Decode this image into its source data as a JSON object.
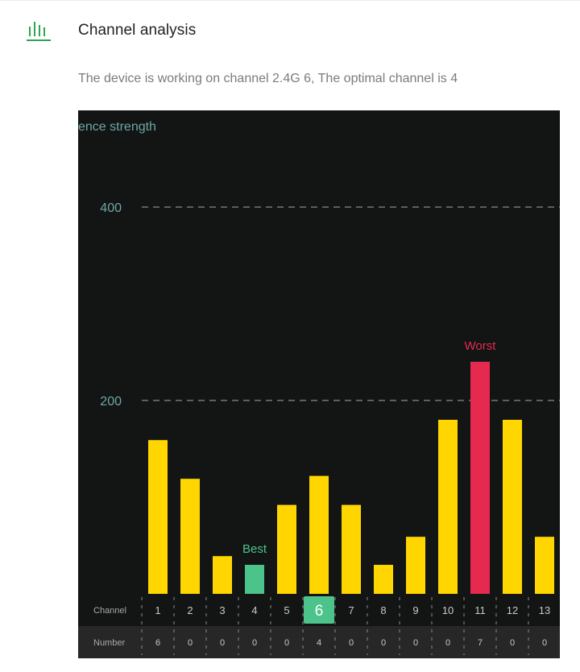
{
  "header": {
    "title": "Channel analysis",
    "icon": "bar-chart-icon",
    "icon_color": "#2ea44f"
  },
  "status": {
    "message": "The device is working on channel 2.4G 6, The optimal channel is 4"
  },
  "colors": {
    "panel_bg": "#121513",
    "bar_default": "#ffd600",
    "bar_best": "#4cc38a",
    "bar_worst": "#e6294f",
    "axis_text": "#6fa7a7",
    "row_bg_number": "#262726",
    "selected_channel_bg": "#4cc38a"
  },
  "chart_data": {
    "type": "bar",
    "ylabel": "Interference strength",
    "ylabel_visible": "ence strength",
    "ylim": [
      0,
      480
    ],
    "yticks": [
      200,
      400
    ],
    "grid": "dashed horizontal at ticks",
    "categories": [
      "1",
      "2",
      "3",
      "4",
      "5",
      "6",
      "7",
      "8",
      "9",
      "10",
      "11",
      "12",
      "13"
    ],
    "values": [
      159,
      119,
      39,
      30,
      92,
      122,
      92,
      30,
      59,
      180,
      240,
      180,
      59
    ],
    "numbers": [
      "6",
      "0",
      "0",
      "0",
      "0",
      "4",
      "0",
      "0",
      "0",
      "0",
      "7",
      "0",
      "0"
    ],
    "best_channel": "4",
    "worst_channel": "11",
    "current_channel": "6",
    "best_label": "Best",
    "worst_label": "Worst",
    "row_labels": {
      "channel": "Channel",
      "number": "Number"
    }
  }
}
